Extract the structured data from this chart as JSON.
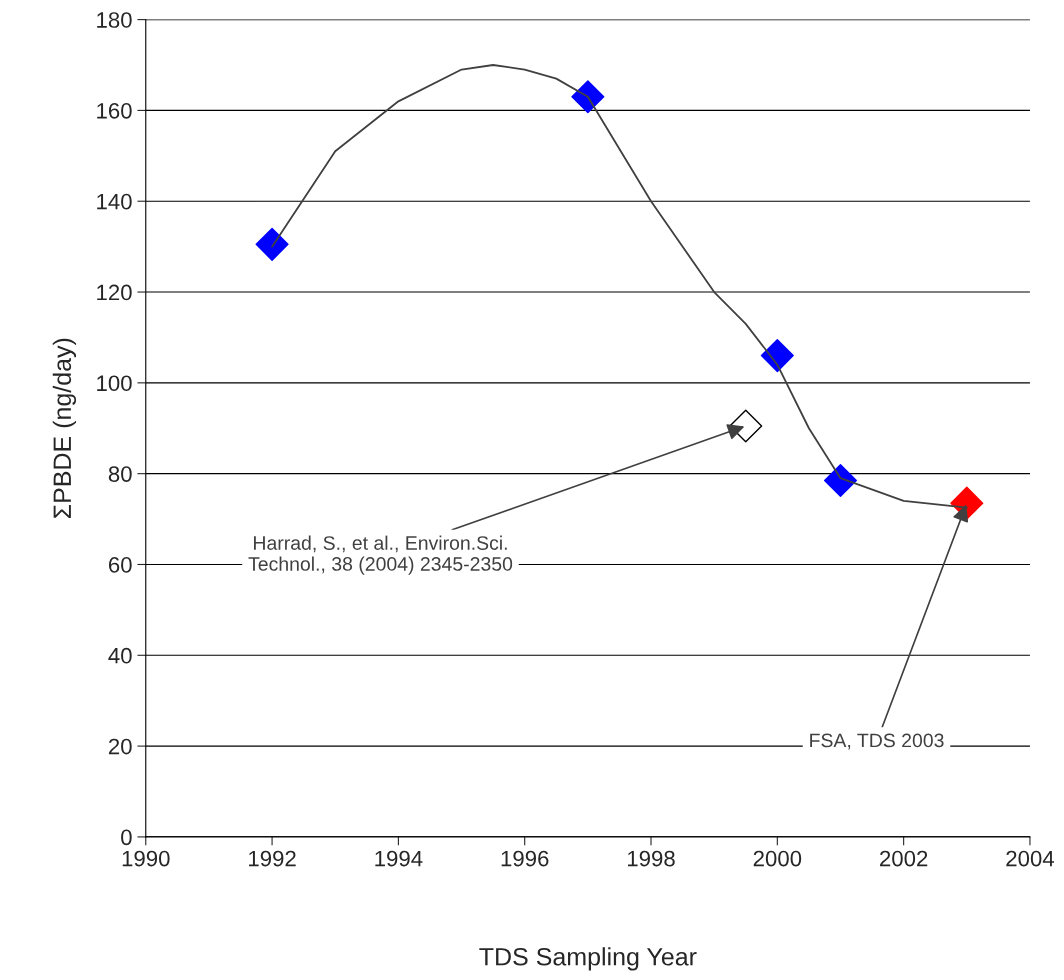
{
  "chart_data": {
    "type": "line",
    "xlabel": "TDS Sampling Year",
    "ylabel": "ΣPBDE (ng/day)",
    "xlim": [
      1990,
      2004
    ],
    "xticks": [
      1990,
      1992,
      1994,
      1996,
      1998,
      2000,
      2002,
      2004
    ],
    "ylim": [
      0,
      180
    ],
    "yticks": [
      0,
      20,
      40,
      60,
      80,
      100,
      120,
      140,
      160,
      180
    ],
    "grid": "y",
    "legend": false,
    "marker": "diamond",
    "series": [
      {
        "color": "#404040",
        "marker": "none",
        "x": [
          1992,
          1993,
          1994,
          1995,
          1995.5,
          1996,
          1996.5,
          1997,
          1998,
          1999,
          1999.5,
          2000,
          2000.5,
          2001,
          2002,
          2003
        ],
        "values": [
          130,
          151,
          162,
          169,
          170,
          169,
          167,
          163,
          140,
          120,
          113,
          104,
          90,
          79,
          74,
          72.5
        ]
      },
      {
        "type": "scatter",
        "color": "#0000ff",
        "x": [
          1992,
          1997,
          2000,
          2001
        ],
        "values": [
          130.5,
          163,
          106,
          78.5
        ]
      },
      {
        "type": "scatter",
        "color": "#ffffff",
        "x": [
          1999.5
        ],
        "values": [
          90.5
        ]
      },
      {
        "type": "scatter",
        "color": "#ff0000",
        "x": [
          2003
        ],
        "values": [
          73.5
        ]
      }
    ],
    "annotations": [
      {
        "text": "Harrad, S., et al., Environ.Sci.\nTechnol., 38 (2004) 2345-2350",
        "x": 1999.5,
        "y": 90.5
      },
      {
        "text": "FSA, TDS 2003",
        "x": 2003,
        "y": 73.5
      }
    ]
  }
}
